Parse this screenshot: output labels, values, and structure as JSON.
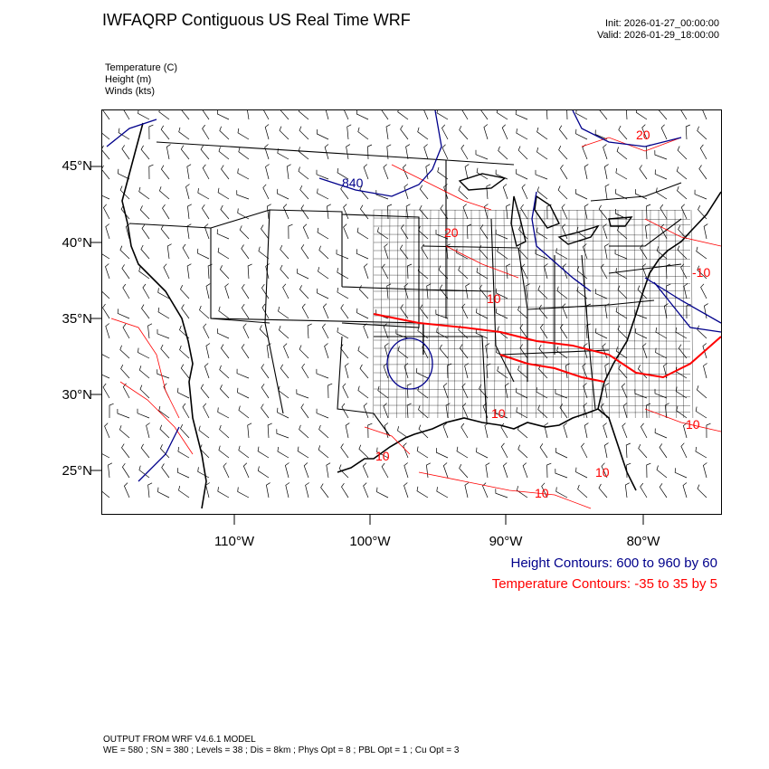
{
  "header": {
    "title": "IWFAQRP Contiguous US Real Time WRF",
    "init": "Init: 2026-01-27_00:00:00",
    "valid": "Valid: 2026-01-29_18:00:00"
  },
  "variables": [
    "Temperature   (C)",
    "Height   (m)",
    "Winds   (kts)"
  ],
  "map": {
    "lat_labels": [
      "45°N",
      "40°N",
      "35°N",
      "30°N",
      "25°N"
    ],
    "lon_labels": [
      "110°W",
      "100°W",
      "90°W",
      "80°W"
    ],
    "height_labels": [
      "840"
    ],
    "temperature_labels": [
      "20",
      "20",
      "10",
      "-10",
      "10",
      "10",
      "10",
      "10",
      "10"
    ],
    "colors": {
      "height": "#00008b",
      "temperature": "#ff0000",
      "borders": "#000000",
      "wind_barbs": "#000000"
    }
  },
  "captions": {
    "height": "Height Contours: 600 to 960 by 60",
    "temperature": "Temperature Contours: -35 to 35 by 5"
  },
  "footer": {
    "line1": "OUTPUT FROM WRF V4.6.1 MODEL",
    "line2": "WE = 580 ; SN = 380 ; Levels = 38 ; Dis = 8km ; Phys Opt = 8 ; PBL Opt = 1 ; Cu Opt = 3"
  }
}
